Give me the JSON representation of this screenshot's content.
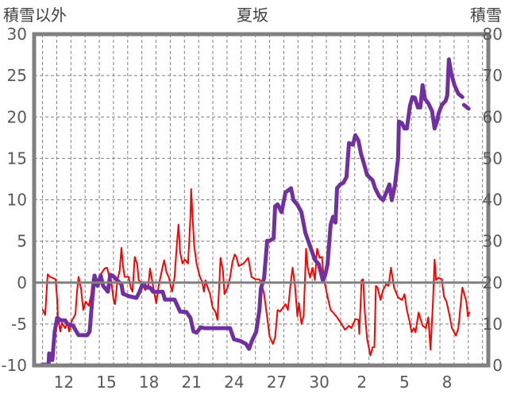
{
  "chart_data": {
    "type": "line",
    "title": "夏坂",
    "ylabel_left": "積雪以外",
    "ylabel_right": "積雪",
    "xlim": [
      0,
      32
    ],
    "ylim_left": [
      -10,
      30
    ],
    "ylim_right": [
      0,
      80
    ],
    "yticks_left": [
      "-10",
      "-5",
      "0",
      "5",
      "10",
      "15",
      "20",
      "25",
      "30"
    ],
    "yticks_right": [
      "0",
      "10",
      "20",
      "30",
      "40",
      "50",
      "60",
      "70",
      "80"
    ],
    "x_day_gridline_offset": 0.59,
    "xtick_positions": [
      2.09,
      5.09,
      8.09,
      11.09,
      14.09,
      17.09,
      20.09,
      23.09,
      26.09,
      29.09
    ],
    "xtick_labels": [
      "12",
      "15",
      "18",
      "21",
      "24",
      "27",
      "30",
      "2",
      "5",
      "8"
    ],
    "grid": true,
    "colors": {
      "left_series": "#ff0000",
      "right_series": "#7030a0",
      "axis": "#808080",
      "grid": "#808080"
    },
    "series": [
      {
        "name": "積雪以外",
        "axis": "left",
        "points": [
          [
            0.61,
            -3.3
          ],
          [
            0.78,
            -3.9
          ],
          [
            0.95,
            1.0
          ],
          [
            1.12,
            0.7
          ],
          [
            1.51,
            0.4
          ],
          [
            1.62,
            -2.0
          ],
          [
            1.68,
            -4.2
          ],
          [
            1.84,
            -5.9
          ],
          [
            1.96,
            -4.9
          ],
          [
            2.18,
            -5.5
          ],
          [
            2.35,
            -4.9
          ],
          [
            2.46,
            -5.9
          ],
          [
            2.63,
            -4.7
          ],
          [
            2.91,
            -3.8
          ],
          [
            3.02,
            -1.1
          ],
          [
            3.13,
            0.7
          ],
          [
            3.3,
            -0.7
          ],
          [
            3.46,
            -3.3
          ],
          [
            3.63,
            -2.3
          ],
          [
            3.85,
            -2.8
          ],
          [
            4.02,
            -1.4
          ],
          [
            4.13,
            0.5
          ],
          [
            4.41,
            -0.4
          ],
          [
            4.69,
            1.0
          ],
          [
            4.97,
            1.7
          ],
          [
            5.14,
            1.8
          ],
          [
            5.25,
            1.0
          ],
          [
            5.42,
            0.3
          ],
          [
            5.59,
            -2.0
          ],
          [
            5.7,
            -2.6
          ],
          [
            5.87,
            0.3
          ],
          [
            6.03,
            1.5
          ],
          [
            6.15,
            4.2
          ],
          [
            6.26,
            2.0
          ],
          [
            6.37,
            0.7
          ],
          [
            6.65,
            0.7
          ],
          [
            6.82,
            -0.7
          ],
          [
            6.93,
            -1.1
          ],
          [
            7.09,
            3.1
          ],
          [
            7.26,
            2.2
          ],
          [
            7.37,
            0.3
          ],
          [
            7.6,
            -0.1
          ],
          [
            7.82,
            -0.9
          ],
          [
            8.04,
            -0.4
          ],
          [
            8.16,
            1.7
          ],
          [
            8.38,
            -0.4
          ],
          [
            8.6,
            -2.5
          ],
          [
            8.77,
            -0.4
          ],
          [
            8.94,
            1.0
          ],
          [
            9.16,
            2.7
          ],
          [
            9.33,
            1.2
          ],
          [
            9.5,
            0.6
          ],
          [
            9.72,
            -1.1
          ],
          [
            9.89,
            0.6
          ],
          [
            10.06,
            4.7
          ],
          [
            10.17,
            7.0
          ],
          [
            10.28,
            3.7
          ],
          [
            10.45,
            2.3
          ],
          [
            10.61,
            2.8
          ],
          [
            10.84,
            2.3
          ],
          [
            11.01,
            7.9
          ],
          [
            11.06,
            11.3
          ],
          [
            11.17,
            7.6
          ],
          [
            11.28,
            4.4
          ],
          [
            11.45,
            2.2
          ],
          [
            11.68,
            0.7
          ],
          [
            11.84,
            0.1
          ],
          [
            11.96,
            -1.1
          ],
          [
            12.07,
            0.3
          ],
          [
            12.23,
            -0.6
          ],
          [
            12.4,
            -1.4
          ],
          [
            12.57,
            -3.0
          ],
          [
            12.79,
            -3.6
          ],
          [
            12.91,
            -4.5
          ],
          [
            13.07,
            0.6
          ],
          [
            13.13,
            3.0
          ],
          [
            13.3,
            1.5
          ],
          [
            13.41,
            -1.4
          ],
          [
            13.63,
            -0.6
          ],
          [
            13.8,
            0.6
          ],
          [
            13.97,
            2.5
          ],
          [
            14.13,
            3.4
          ],
          [
            14.25,
            3.1
          ],
          [
            14.41,
            2.0
          ],
          [
            14.75,
            2.3
          ],
          [
            15.08,
            3.0
          ],
          [
            15.31,
            0.7
          ],
          [
            15.59,
            0.4
          ],
          [
            15.87,
            0.4
          ],
          [
            16.03,
            -0.1
          ],
          [
            16.2,
            -1.4
          ],
          [
            16.42,
            -4.2
          ],
          [
            16.59,
            -6.5
          ],
          [
            16.82,
            -7.4
          ],
          [
            16.98,
            -6.6
          ],
          [
            17.15,
            -3.3
          ],
          [
            17.32,
            -3.5
          ],
          [
            17.71,
            -2.6
          ],
          [
            17.88,
            -3.3
          ],
          [
            18.1,
            0.3
          ],
          [
            18.21,
            1.8
          ],
          [
            18.38,
            -0.4
          ],
          [
            18.55,
            -4.1
          ],
          [
            18.66,
            -2.5
          ],
          [
            18.83,
            -5.0
          ],
          [
            18.99,
            -4.0
          ],
          [
            19.16,
            4.1
          ],
          [
            19.27,
            1.8
          ],
          [
            19.44,
            0.6
          ],
          [
            19.61,
            1.8
          ],
          [
            19.78,
            0.3
          ],
          [
            19.94,
            4.1
          ],
          [
            20.11,
            3.0
          ],
          [
            20.28,
            3.1
          ],
          [
            20.39,
            0.6
          ],
          [
            20.67,
            -1.7
          ],
          [
            20.89,
            -3.3
          ],
          [
            21.06,
            -3.6
          ],
          [
            21.34,
            -4.2
          ],
          [
            21.62,
            -4.9
          ],
          [
            21.9,
            -5.7
          ],
          [
            22.18,
            -5.2
          ],
          [
            22.35,
            -5.5
          ],
          [
            22.63,
            -4.4
          ],
          [
            22.85,
            -4.5
          ],
          [
            22.91,
            -6.2
          ],
          [
            23.07,
            0.3
          ],
          [
            23.18,
            0.4
          ],
          [
            23.3,
            -3.6
          ],
          [
            23.46,
            -6.8
          ],
          [
            23.69,
            -8.8
          ],
          [
            23.85,
            -7.8
          ],
          [
            23.97,
            -7.8
          ],
          [
            24.08,
            -0.4
          ],
          [
            24.19,
            -0.6
          ],
          [
            24.41,
            -2.1
          ],
          [
            24.58,
            -0.9
          ],
          [
            24.8,
            -0.2
          ],
          [
            24.97,
            -0.4
          ],
          [
            25.14,
            1.8
          ],
          [
            25.36,
            -0.6
          ],
          [
            25.64,
            -1.8
          ],
          [
            25.92,
            -2.1
          ],
          [
            26.09,
            -1.4
          ],
          [
            26.26,
            -3.3
          ],
          [
            26.48,
            -4.9
          ],
          [
            26.59,
            -6.0
          ],
          [
            26.76,
            -5.5
          ],
          [
            26.87,
            -6.0
          ],
          [
            27.09,
            -3.6
          ],
          [
            27.37,
            -5.2
          ],
          [
            27.6,
            -5.5
          ],
          [
            27.77,
            -4.2
          ],
          [
            27.93,
            -8.1
          ],
          [
            28.1,
            -2.3
          ],
          [
            28.21,
            2.8
          ],
          [
            28.32,
            0.3
          ],
          [
            28.49,
            0.6
          ],
          [
            28.72,
            0.4
          ],
          [
            28.88,
            -1.7
          ],
          [
            29.05,
            -2.3
          ],
          [
            29.27,
            -4.0
          ],
          [
            29.44,
            -5.5
          ],
          [
            29.72,
            -6.4
          ],
          [
            29.89,
            -5.5
          ],
          [
            30.06,
            -2.5
          ],
          [
            30.17,
            -0.6
          ],
          [
            30.34,
            -1.6
          ],
          [
            30.45,
            -2.3
          ],
          [
            30.56,
            -4.1
          ],
          [
            30.67,
            -3.6
          ]
        ]
      },
      {
        "name": "積雪",
        "axis": "right",
        "points": [
          [
            0.56,
            0.2
          ],
          [
            1.01,
            0.2
          ],
          [
            1.06,
            2.9
          ],
          [
            1.17,
            1.5
          ],
          [
            1.28,
            1.3
          ],
          [
            1.45,
            8.2
          ],
          [
            1.62,
            11.5
          ],
          [
            1.9,
            10.9
          ],
          [
            2.18,
            10.9
          ],
          [
            2.35,
            10.0
          ],
          [
            2.74,
            9.6
          ],
          [
            2.91,
            8.6
          ],
          [
            3.13,
            7.3
          ],
          [
            3.74,
            7.3
          ],
          [
            3.91,
            8.2
          ],
          [
            4.08,
            15.3
          ],
          [
            4.25,
            21.7
          ],
          [
            4.47,
            19.2
          ],
          [
            4.69,
            21.7
          ],
          [
            4.86,
            19.2
          ],
          [
            5.2,
            17.8
          ],
          [
            5.36,
            21.9
          ],
          [
            5.59,
            21.5
          ],
          [
            5.87,
            20.5
          ],
          [
            6.15,
            19.6
          ],
          [
            6.26,
            17.3
          ],
          [
            6.7,
            16.7
          ],
          [
            7.21,
            16.3
          ],
          [
            7.43,
            17.8
          ],
          [
            7.65,
            19.8
          ],
          [
            7.93,
            18.8
          ],
          [
            8.16,
            18.8
          ],
          [
            8.38,
            17.8
          ],
          [
            9.05,
            17.8
          ],
          [
            9.22,
            15.9
          ],
          [
            9.89,
            15.9
          ],
          [
            10.28,
            13.0
          ],
          [
            10.73,
            12.9
          ],
          [
            11.01,
            11.5
          ],
          [
            11.23,
            8.2
          ],
          [
            11.45,
            7.9
          ],
          [
            11.73,
            9.2
          ],
          [
            12.01,
            9.0
          ],
          [
            13.8,
            9.0
          ],
          [
            14.08,
            6.3
          ],
          [
            14.53,
            5.9
          ],
          [
            14.92,
            5.2
          ],
          [
            15.14,
            4.0
          ],
          [
            15.36,
            6.1
          ],
          [
            15.64,
            8.1
          ],
          [
            15.87,
            13.4
          ],
          [
            15.98,
            18.6
          ],
          [
            16.2,
            21.1
          ],
          [
            16.42,
            30.1
          ],
          [
            16.59,
            30.1
          ],
          [
            16.87,
            30.7
          ],
          [
            16.98,
            38.4
          ],
          [
            17.15,
            38.9
          ],
          [
            17.43,
            37.0
          ],
          [
            17.71,
            41.8
          ],
          [
            17.88,
            42.2
          ],
          [
            18.1,
            42.8
          ],
          [
            18.27,
            39.9
          ],
          [
            18.55,
            38.8
          ],
          [
            18.83,
            37.0
          ],
          [
            19.11,
            32.0
          ],
          [
            19.5,
            28.2
          ],
          [
            19.78,
            25.5
          ],
          [
            20.06,
            24.4
          ],
          [
            20.34,
            20.5
          ],
          [
            20.5,
            21.7
          ],
          [
            20.67,
            24.4
          ],
          [
            20.89,
            34.0
          ],
          [
            21.06,
            35.9
          ],
          [
            21.23,
            34.5
          ],
          [
            21.34,
            42.8
          ],
          [
            21.56,
            43.7
          ],
          [
            21.79,
            44.1
          ],
          [
            22.01,
            45.5
          ],
          [
            22.18,
            53.7
          ],
          [
            22.46,
            53.3
          ],
          [
            22.63,
            55.6
          ],
          [
            22.85,
            54.3
          ],
          [
            23.02,
            51.2
          ],
          [
            23.3,
            48.0
          ],
          [
            23.46,
            46.0
          ],
          [
            23.85,
            44.7
          ],
          [
            24.02,
            42.8
          ],
          [
            24.3,
            40.9
          ],
          [
            24.58,
            39.9
          ],
          [
            24.86,
            42.2
          ],
          [
            25.03,
            43.7
          ],
          [
            25.2,
            39.9
          ],
          [
            25.42,
            43.5
          ],
          [
            25.64,
            49.9
          ],
          [
            25.7,
            58.9
          ],
          [
            25.92,
            58.5
          ],
          [
            26.09,
            57.2
          ],
          [
            26.26,
            57.2
          ],
          [
            26.48,
            62.7
          ],
          [
            26.65,
            64.8
          ],
          [
            26.82,
            64.7
          ],
          [
            27.04,
            62.3
          ],
          [
            27.21,
            62.3
          ],
          [
            27.37,
            67.7
          ],
          [
            27.54,
            64.3
          ],
          [
            27.77,
            63.3
          ],
          [
            28.04,
            61.4
          ],
          [
            28.21,
            57.2
          ],
          [
            28.38,
            58.9
          ],
          [
            28.49,
            60.8
          ],
          [
            28.72,
            62.9
          ],
          [
            28.99,
            63.9
          ],
          [
            29.11,
            65.2
          ],
          [
            29.22,
            73.9
          ],
          [
            29.39,
            70.6
          ],
          [
            29.61,
            67.7
          ],
          [
            29.89,
            65.6
          ],
          [
            30.17,
            64.8
          ],
          null,
          [
            30.28,
            62.9
          ],
          [
            30.61,
            62.0
          ]
        ]
      }
    ]
  }
}
